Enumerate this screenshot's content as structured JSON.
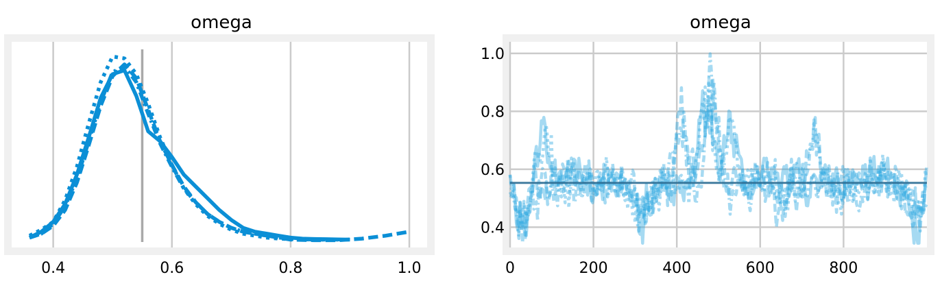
{
  "chart_data": [
    {
      "type": "line",
      "subtype": "density",
      "title": "omega",
      "xlim": [
        0.33,
        1.03
      ],
      "xticks": [
        "0.4",
        "0.6",
        "0.8",
        "1.0"
      ],
      "y_ticks_shown": false,
      "grid": "vertical",
      "reference_line_x": 0.55,
      "color": "#0b8fd6",
      "series": [
        {
          "style": "solid",
          "x": [
            0.36,
            0.38,
            0.4,
            0.42,
            0.44,
            0.46,
            0.48,
            0.5,
            0.52,
            0.54,
            0.56,
            0.58,
            0.6,
            0.62,
            0.64,
            0.66,
            0.68,
            0.7,
            0.72,
            0.74,
            0.76,
            0.78,
            0.8,
            0.82,
            0.84,
            0.86,
            0.88,
            0.9
          ],
          "y": [
            0.01,
            0.04,
            0.09,
            0.18,
            0.33,
            0.52,
            0.72,
            0.84,
            0.86,
            0.73,
            0.55,
            0.5,
            0.42,
            0.33,
            0.27,
            0.21,
            0.15,
            0.1,
            0.06,
            0.04,
            0.03,
            0.02,
            0.01,
            0.005,
            0.003,
            0.002,
            0.001,
            0.0
          ]
        },
        {
          "style": "dashed",
          "x": [
            0.36,
            0.38,
            0.4,
            0.42,
            0.44,
            0.46,
            0.48,
            0.5,
            0.52,
            0.54,
            0.56,
            0.58,
            0.6,
            0.62,
            0.64,
            0.66,
            0.68,
            0.7,
            0.72,
            0.74,
            0.76,
            0.78,
            0.8,
            0.84,
            0.88,
            0.92,
            0.96,
            1.0
          ],
          "y": [
            0.01,
            0.03,
            0.07,
            0.15,
            0.29,
            0.48,
            0.68,
            0.83,
            0.89,
            0.82,
            0.66,
            0.5,
            0.38,
            0.27,
            0.19,
            0.13,
            0.09,
            0.06,
            0.04,
            0.03,
            0.02,
            0.01,
            0.0,
            -0.003,
            -0.003,
            0.005,
            0.02,
            0.04
          ]
        },
        {
          "style": "dotted",
          "x": [
            0.36,
            0.38,
            0.4,
            0.42,
            0.44,
            0.46,
            0.48,
            0.5,
            0.52,
            0.54,
            0.56,
            0.58,
            0.6,
            0.62,
            0.64,
            0.66,
            0.68,
            0.7,
            0.72,
            0.74,
            0.76,
            0.78,
            0.8,
            0.84,
            0.88
          ],
          "y": [
            0.02,
            0.05,
            0.09,
            0.2,
            0.37,
            0.59,
            0.8,
            0.93,
            0.92,
            0.84,
            0.69,
            0.52,
            0.38,
            0.26,
            0.18,
            0.12,
            0.08,
            0.05,
            0.03,
            0.02,
            0.01,
            0.005,
            0.002,
            0.0,
            0.0
          ]
        },
        {
          "style": "dashdot",
          "x": [
            0.36,
            0.38,
            0.4,
            0.42,
            0.44,
            0.46,
            0.48,
            0.5,
            0.52,
            0.54,
            0.56,
            0.58,
            0.6,
            0.62,
            0.64,
            0.66,
            0.68,
            0.7,
            0.72,
            0.74,
            0.76,
            0.78,
            0.8,
            0.84,
            0.88
          ],
          "y": [
            0.01,
            0.03,
            0.08,
            0.17,
            0.31,
            0.5,
            0.7,
            0.85,
            0.88,
            0.8,
            0.64,
            0.49,
            0.37,
            0.26,
            0.19,
            0.13,
            0.09,
            0.06,
            0.04,
            0.03,
            0.02,
            0.01,
            0.005,
            0.0,
            0.0
          ]
        }
      ]
    },
    {
      "type": "line",
      "subtype": "trace",
      "title": "omega",
      "xlim": [
        0,
        1000
      ],
      "ylim": [
        0.33,
        1.04
      ],
      "xticks": [
        "0",
        "200",
        "400",
        "600",
        "800"
      ],
      "yticks": [
        "0.4",
        "0.6",
        "0.8",
        "1.0"
      ],
      "grid": "both",
      "reference_line_y": 0.553,
      "color": "#2aa6e0",
      "n_draws": 1000,
      "styles": [
        "solid",
        "dashed",
        "dotted",
        "dashdot"
      ],
      "center": 0.55,
      "typical_range": [
        0.4,
        0.75
      ],
      "excursions": [
        {
          "x": 85,
          "y": 0.82
        },
        {
          "x": 410,
          "y": 0.89
        },
        {
          "x": 470,
          "y": 1.0
        },
        {
          "x": 485,
          "y": 0.99
        },
        {
          "x": 530,
          "y": 0.88
        },
        {
          "x": 730,
          "y": 0.8
        },
        {
          "x": 30,
          "y": 0.35
        },
        {
          "x": 320,
          "y": 0.36
        },
        {
          "x": 980,
          "y": 0.38
        }
      ]
    }
  ]
}
